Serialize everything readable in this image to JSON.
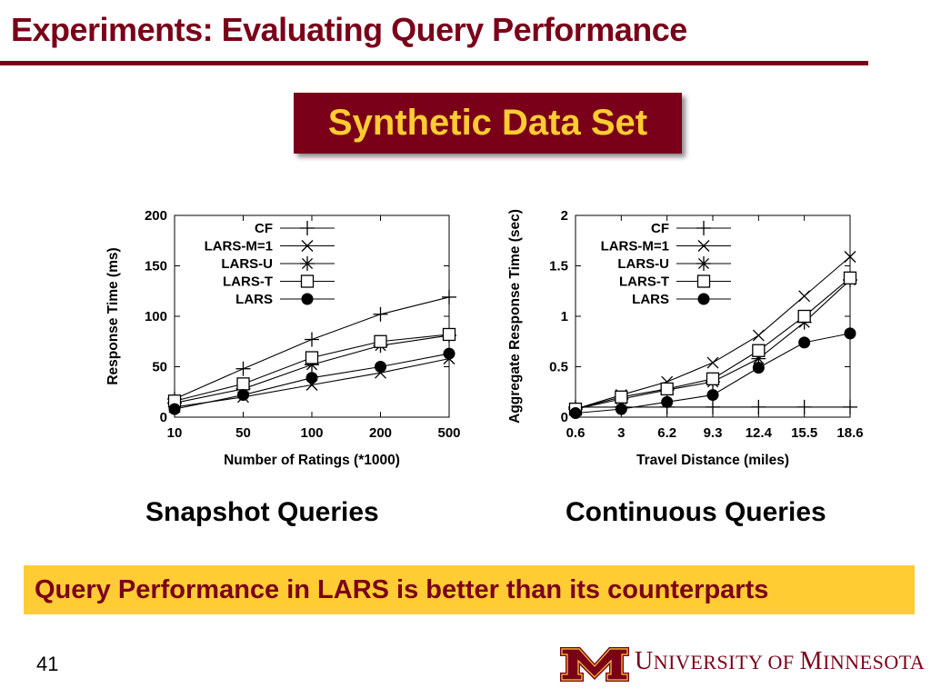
{
  "slide": {
    "title": "Experiments: Evaluating Query Performance",
    "subtitle_box": "Synthetic Data Set",
    "caption_left": "Snapshot Queries",
    "caption_right": "Continuous Queries",
    "conclusion": "Query Performance in LARS is better than its counterparts",
    "page_number": "41",
    "university": {
      "u": "U",
      "niversity": "NIVERSITY",
      "of": "OF",
      "m": "M",
      "innesota": "INNESOTA"
    }
  },
  "colors": {
    "maroon": "#7a0019",
    "gold": "#ffcc33"
  },
  "legend_marker_icons": [
    "plus-icon",
    "x-icon",
    "asterisk-icon",
    "square-icon",
    "circle-icon"
  ],
  "chart_data": [
    {
      "type": "line",
      "title": "Snapshot Queries",
      "xlabel": "Number of Ratings (*1000)",
      "ylabel": "Response Time (ms)",
      "categories": [
        "10",
        "50",
        "100",
        "200",
        "500"
      ],
      "ylim": [
        0,
        200
      ],
      "yticks": [
        0,
        50,
        100,
        150,
        200
      ],
      "legend_position": "top-left",
      "series": [
        {
          "name": "CF",
          "marker": "plus",
          "values": [
            18,
            48,
            77,
            102,
            119
          ]
        },
        {
          "name": "LARS-M=1",
          "marker": "x",
          "values": [
            10,
            20,
            32,
            44,
            58
          ]
        },
        {
          "name": "LARS-U",
          "marker": "asterisk",
          "values": [
            14,
            28,
            52,
            71,
            81
          ]
        },
        {
          "name": "LARS-T",
          "marker": "square",
          "values": [
            16,
            33,
            59,
            75,
            82
          ]
        },
        {
          "name": "LARS",
          "marker": "circle",
          "values": [
            8,
            22,
            39,
            50,
            63
          ]
        }
      ]
    },
    {
      "type": "line",
      "title": "Continuous Queries",
      "xlabel": "Travel Distance (miles)",
      "ylabel": "Aggregate Response Time (sec)",
      "categories": [
        "0.6",
        "3",
        "6.2",
        "9.3",
        "12.4",
        "15.5",
        "18.6"
      ],
      "ylim": [
        0,
        2
      ],
      "yticks": [
        0,
        0.5,
        1,
        1.5,
        2
      ],
      "legend_position": "top-left",
      "series": [
        {
          "name": "CF",
          "marker": "plus",
          "values": [
            0.1,
            0.1,
            0.1,
            0.1,
            0.1,
            0.1,
            0.1
          ]
        },
        {
          "name": "LARS-M=1",
          "marker": "x",
          "values": [
            0.08,
            0.22,
            0.35,
            0.54,
            0.81,
            1.2,
            1.59
          ]
        },
        {
          "name": "LARS-U",
          "marker": "asterisk",
          "values": [
            0.08,
            0.18,
            0.27,
            0.35,
            0.58,
            0.94,
            1.36
          ]
        },
        {
          "name": "LARS-T",
          "marker": "square",
          "values": [
            0.08,
            0.2,
            0.28,
            0.38,
            0.66,
            1.0,
            1.38
          ]
        },
        {
          "name": "LARS",
          "marker": "circle",
          "values": [
            0.04,
            0.08,
            0.15,
            0.22,
            0.49,
            0.74,
            0.83
          ]
        }
      ]
    }
  ]
}
